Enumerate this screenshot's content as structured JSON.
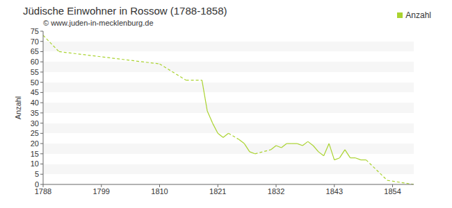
{
  "chart_data": {
    "type": "line",
    "title": "Jüdische Einwohner in Rossow (1788-1858)",
    "subtitle": "© www.juden-in-mecklenburg.de",
    "y_label": "Anzahl",
    "x": [
      1788,
      1791,
      1810,
      1815,
      1818,
      1819,
      1820,
      1821,
      1822,
      1823,
      1825,
      1826,
      1827,
      1828,
      1831,
      1832,
      1833,
      1834,
      1835,
      1836,
      1837,
      1838,
      1839,
      1840,
      1841,
      1842,
      1843,
      1844,
      1845,
      1846,
      1847,
      1848,
      1849,
      1853,
      1858
    ],
    "series": [
      {
        "name": "Anzahl",
        "color": "#aad330",
        "values": [
          73,
          65,
          59,
          51,
          51,
          36,
          30,
          25,
          23,
          25,
          22,
          20,
          16,
          15,
          17,
          19,
          18,
          20,
          20,
          20,
          19,
          21,
          19,
          16,
          14,
          20,
          12,
          13,
          17,
          13,
          13,
          12,
          12,
          2,
          0
        ]
      }
    ],
    "xlim": [
      1788,
      1858
    ],
    "ylim": [
      0,
      75
    ],
    "xticks": [
      1788,
      1799,
      1810,
      1821,
      1832,
      1843,
      1854
    ],
    "yticks": [
      0,
      5,
      10,
      15,
      20,
      25,
      30,
      35,
      40,
      45,
      50,
      55,
      60,
      65,
      70,
      75
    ],
    "grid": true,
    "legend": "top right"
  }
}
